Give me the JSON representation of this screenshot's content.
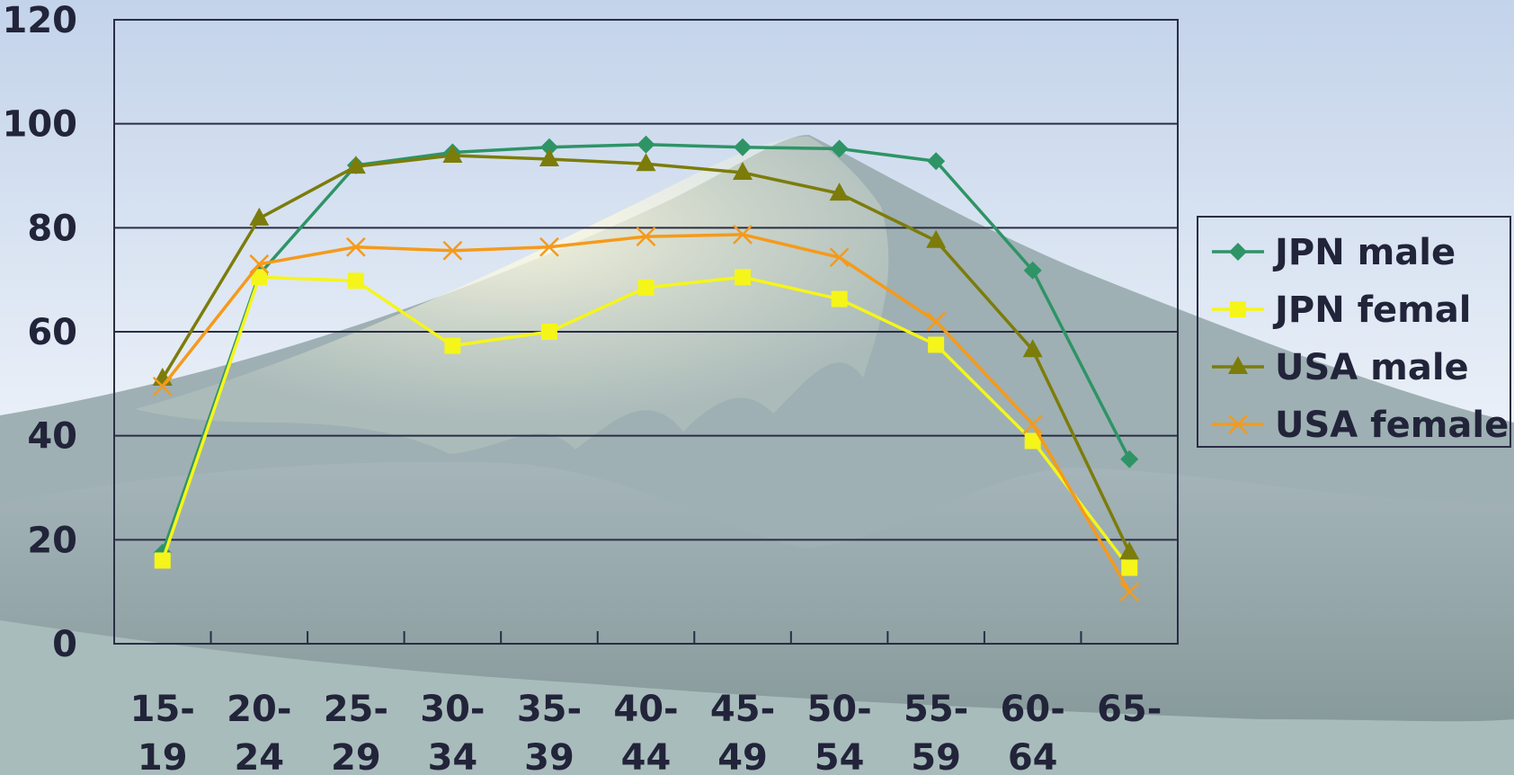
{
  "chart_data": {
    "type": "line",
    "title": "",
    "xlabel": "",
    "ylabel": "",
    "ylim": [
      0,
      120
    ],
    "yticks": [
      "0",
      "20",
      "40",
      "60",
      "80",
      "100",
      "120"
    ],
    "categories": [
      [
        "15-",
        "19"
      ],
      [
        "20-",
        "24"
      ],
      [
        "25-",
        "29"
      ],
      [
        "30-",
        "34"
      ],
      [
        "35-",
        "39"
      ],
      [
        "40-",
        "44"
      ],
      [
        "45-",
        "49"
      ],
      [
        "50-",
        "54"
      ],
      [
        "55-",
        "59"
      ],
      [
        "60-",
        "64"
      ],
      [
        "65-",
        ""
      ]
    ],
    "grid": "horizontal",
    "legend_position": "right",
    "series": [
      {
        "name": "JPN male",
        "color": "#2e9466",
        "marker": "diamond",
        "values": [
          17.5,
          71,
          92,
          94.5,
          95.5,
          96,
          95.5,
          95.2,
          92.8,
          71.8,
          35.5
        ]
      },
      {
        "name": "JPN femal",
        "color": "#f5f51a",
        "marker": "square",
        "values": [
          16,
          70.5,
          69.8,
          57.3,
          60,
          68.5,
          70.5,
          66.3,
          57.5,
          39,
          14.6
        ]
      },
      {
        "name": "USA male",
        "color": "#7c7c0a",
        "marker": "triangle",
        "values": [
          51,
          81.8,
          91.8,
          93.9,
          93.2,
          92.3,
          90.6,
          86.6,
          77.5,
          56.5,
          17.6
        ]
      },
      {
        "name": "USA female",
        "color": "#f59a1a",
        "marker": "x",
        "values": [
          49.5,
          73,
          76.3,
          75.6,
          76.3,
          78.3,
          78.7,
          74.3,
          62,
          42.2,
          10
        ]
      }
    ]
  }
}
